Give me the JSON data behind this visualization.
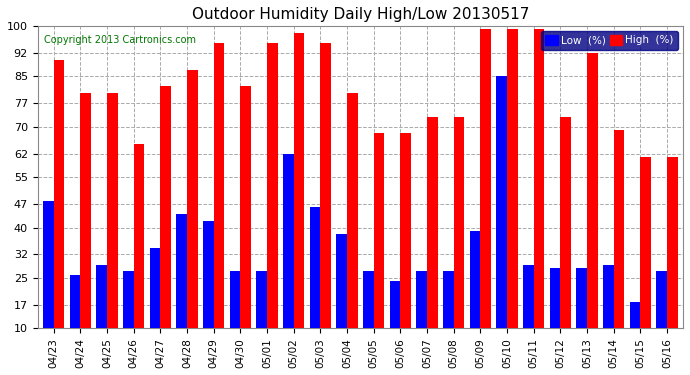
{
  "title": "Outdoor Humidity Daily High/Low 20130517",
  "copyright": "Copyright 2013 Cartronics.com",
  "legend_low": "Low  (%)",
  "legend_high": "High  (%)",
  "categories": [
    "04/23",
    "04/24",
    "04/25",
    "04/26",
    "04/27",
    "04/28",
    "04/29",
    "04/30",
    "05/01",
    "05/02",
    "05/03",
    "05/04",
    "05/05",
    "05/06",
    "05/07",
    "05/08",
    "05/09",
    "05/10",
    "05/11",
    "05/12",
    "05/13",
    "05/14",
    "05/15",
    "05/16"
  ],
  "high_values": [
    90,
    80,
    80,
    65,
    82,
    87,
    95,
    82,
    95,
    98,
    95,
    80,
    68,
    68,
    73,
    73,
    99,
    99,
    99,
    73,
    92,
    69,
    61,
    61
  ],
  "low_values": [
    48,
    26,
    29,
    27,
    34,
    44,
    42,
    27,
    27,
    62,
    46,
    38,
    27,
    24,
    27,
    27,
    39,
    85,
    29,
    28,
    28,
    29,
    18,
    27
  ],
  "bar_color_high": "#ff0000",
  "bar_color_low": "#0000ff",
  "background_color": "#ffffff",
  "plot_bg_color": "#ffffff",
  "grid_color": "#aaaaaa",
  "yticks": [
    10,
    17,
    25,
    32,
    40,
    47,
    55,
    62,
    70,
    77,
    85,
    92,
    100
  ],
  "ylim_min": 10,
  "ylim_max": 100,
  "bar_width": 0.4,
  "title_fontsize": 11,
  "tick_fontsize": 8,
  "copyright_color": "#007700",
  "legend_bg": "#000080",
  "border_color": "#888888"
}
